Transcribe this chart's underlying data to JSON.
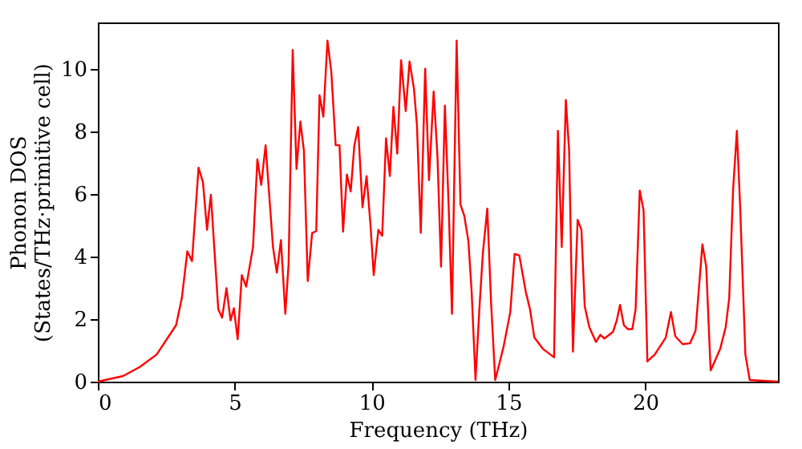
{
  "chart_data": {
    "type": "line",
    "xlabel": "Frequency (THz)",
    "ylabel": "Phonon DOS\n(States/THz·primitive cell)",
    "xlim": [
      0,
      24.85
    ],
    "ylim": [
      0,
      11.5
    ],
    "xticks": [
      0,
      5,
      10,
      15,
      20
    ],
    "yticks": [
      0,
      2,
      4,
      6,
      8,
      10
    ],
    "grid": false,
    "line_style": "solid",
    "series": [
      {
        "color": "#ff0000",
        "x": [
          0,
          0.92,
          1.53,
          2.15,
          2.86,
          3.07,
          3.27,
          3.44,
          3.68,
          3.84,
          3.99,
          4.13,
          4.4,
          4.54,
          4.7,
          4.85,
          4.97,
          5.11,
          5.26,
          5.42,
          5.67,
          5.83,
          5.97,
          6.13,
          6.4,
          6.54,
          6.69,
          6.85,
          6.97,
          7.12,
          7.26,
          7.4,
          7.53,
          7.67,
          7.83,
          7.98,
          8.1,
          8.24,
          8.39,
          8.53,
          8.69,
          8.83,
          8.96,
          9.1,
          9.24,
          9.37,
          9.51,
          9.67,
          9.82,
          9.96,
          10.08,
          10.25,
          10.39,
          10.53,
          10.67,
          10.8,
          10.94,
          11.08,
          11.25,
          11.39,
          11.55,
          11.66,
          11.8,
          11.96,
          12.1,
          12.27,
          12.41,
          12.54,
          12.68,
          12.82,
          12.94,
          13.11,
          13.25,
          13.39,
          13.54,
          13.66,
          13.8,
          13.94,
          14.07,
          14.23,
          14.37,
          14.52,
          14.66,
          14.83,
          15.07,
          15.23,
          15.4,
          15.64,
          15.79,
          15.95,
          16.26,
          16.67,
          16.81,
          16.95,
          17.1,
          17.22,
          17.36,
          17.53,
          17.67,
          17.79,
          17.96,
          18.2,
          18.36,
          18.51,
          18.82,
          18.96,
          19.08,
          19.22,
          19.37,
          19.53,
          19.65,
          19.8,
          19.94,
          20.08,
          20.35,
          20.75,
          20.94,
          21.1,
          21.37,
          21.64,
          21.84,
          22.09,
          22.23,
          22.39,
          22.54,
          22.74,
          22.94,
          23.07,
          23.21,
          23.35,
          23.47,
          23.66,
          23.82,
          24.85
        ],
        "values": [
          0,
          0.18,
          0.47,
          0.87,
          1.81,
          2.68,
          4.17,
          3.86,
          6.85,
          6.39,
          4.86,
          5.98,
          2.32,
          2.05,
          2.99,
          1.96,
          2.35,
          1.36,
          3.41,
          3.04,
          4.31,
          7.12,
          6.3,
          7.57,
          4.31,
          3.49,
          4.53,
          2.17,
          3.77,
          10.62,
          6.81,
          8.33,
          7.39,
          3.22,
          4.76,
          4.82,
          9.17,
          8.48,
          10.92,
          9.93,
          7.57,
          7.57,
          4.8,
          6.63,
          6.09,
          7.54,
          8.15,
          5.58,
          6.58,
          5.04,
          3.41,
          4.86,
          4.67,
          7.79,
          6.58,
          8.8,
          7.3,
          10.29,
          8.66,
          10.25,
          9.38,
          8.21,
          4.76,
          10.02,
          6.45,
          9.29,
          7.21,
          3.68,
          8.84,
          5.58,
          2.17,
          10.92,
          5.67,
          5.31,
          4.49,
          2.86,
          0.05,
          2.32,
          4.13,
          5.54,
          2.5,
          0.05,
          0.54,
          1.14,
          2.23,
          4.09,
          4.04,
          2.86,
          2.32,
          1.41,
          1.05,
          0.78,
          8.03,
          4.31,
          9.02,
          7.39,
          0.96,
          5.18,
          4.86,
          2.41,
          1.74,
          1.27,
          1.5,
          1.38,
          1.59,
          1.96,
          2.46,
          1.81,
          1.68,
          1.68,
          2.32,
          6.12,
          5.49,
          0.65,
          0.87,
          1.41,
          2.23,
          1.45,
          1.2,
          1.23,
          1.63,
          4.4,
          3.68,
          0.36,
          0.65,
          1.05,
          1.74,
          2.68,
          6.12,
          8.03,
          5.58,
          0.87,
          0.05,
          0
        ]
      }
    ]
  }
}
